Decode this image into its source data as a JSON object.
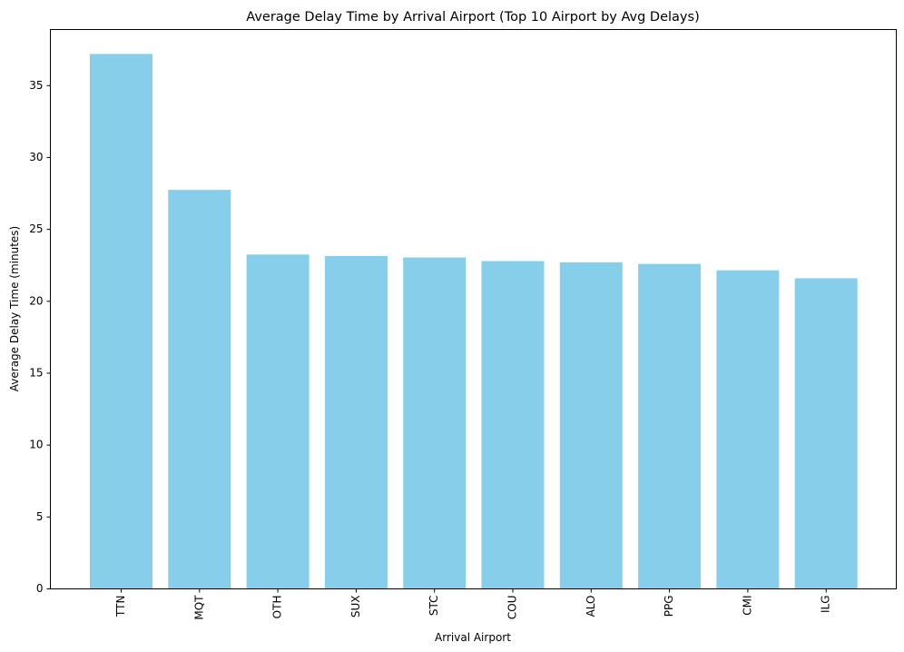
{
  "chart_data": {
    "type": "bar",
    "title": "Average Delay Time by Arrival Airport (Top 10 Airport by Avg Delays)",
    "xlabel": "Arrival Airport",
    "ylabel": "Average Delay Time (minutes)",
    "categories": [
      "TTN",
      "MQT",
      "OTH",
      "SUX",
      "STC",
      "COU",
      "ALO",
      "PPG",
      "CMI",
      "ILG"
    ],
    "values": [
      37.2,
      27.75,
      23.25,
      23.15,
      23.05,
      22.8,
      22.7,
      22.6,
      22.15,
      21.6
    ],
    "ylim": [
      0,
      38.9
    ],
    "yticks": [
      0,
      5,
      10,
      15,
      20,
      25,
      30,
      35
    ],
    "grid": false,
    "bar_color": "#87ceeb"
  }
}
